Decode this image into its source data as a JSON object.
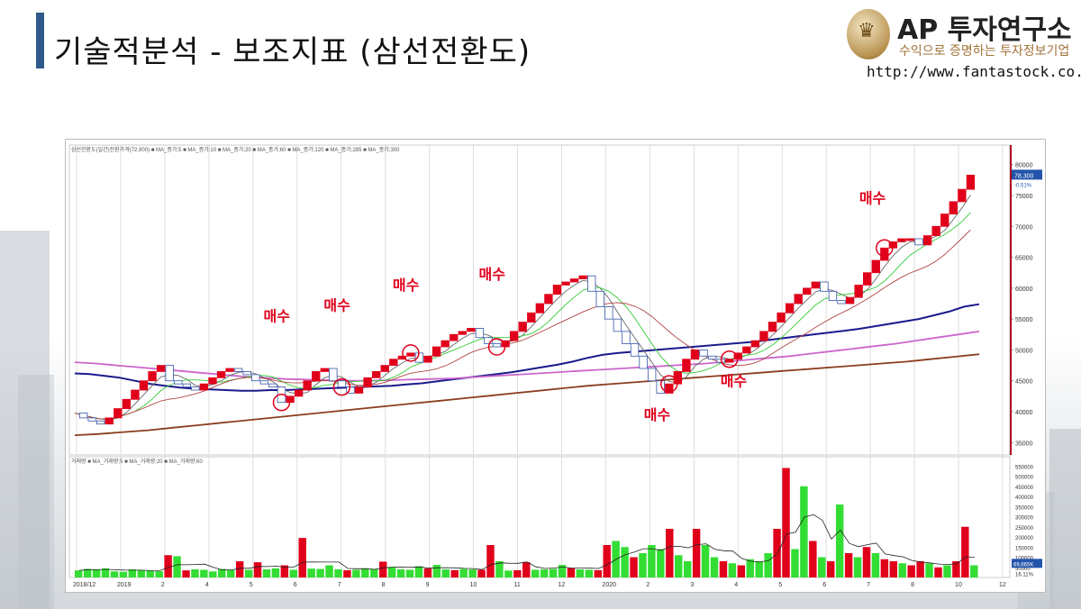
{
  "header": {
    "title": "기술적분석 - 보조지표 (삼선전환도)",
    "logo_name": "AP 투자연구소",
    "logo_sub": "수익으로 증명하는 투자정보기업",
    "logo_url": "http://www.fantastock.co.kr"
  },
  "chart_data": {
    "type": "line",
    "price_panel": {
      "legend": [
        "삼선전환도(일간)전환가격(72,900)",
        "MA_종가;5",
        "MA_종가;10",
        "MA_종가;20",
        "MA_종가;60",
        "MA_종가;120",
        "MA_종가;285",
        "MA_종가;300"
      ],
      "ylim": [
        33000,
        82000
      ],
      "y_ticks": [
        35000,
        40000,
        45000,
        50000,
        55000,
        60000,
        65000,
        70000,
        75000,
        80000
      ],
      "last_price_label": "78,300",
      "change_label": "-0.51%",
      "x_ticks": [
        "2018/12",
        "2019",
        "2",
        "4",
        "5",
        "6",
        "7",
        "8",
        "9",
        "10",
        "11",
        "12",
        "2020",
        "2",
        "3",
        "4",
        "5",
        "6",
        "7",
        "8",
        "10",
        "12"
      ],
      "series": [
        {
          "name": "전환가격",
          "color": "#e0001b",
          "values": [
            39800,
            39000,
            38500,
            38000,
            39000,
            40500,
            42000,
            43500,
            45000,
            46500,
            47500,
            45000,
            44500,
            44000,
            43500,
            44500,
            45500,
            46500,
            47000,
            46500,
            46000,
            45000,
            44500,
            44000,
            41500,
            42500,
            43500,
            45000,
            46500,
            47000,
            45000,
            44000,
            43000,
            44000,
            45500,
            46500,
            47500,
            48500,
            49000,
            49500,
            48000,
            49000,
            50500,
            51500,
            52500,
            53000,
            53500,
            52000,
            51000,
            50500,
            51500,
            53000,
            54500,
            56000,
            57500,
            59000,
            60500,
            61000,
            61500,
            62000,
            59500,
            57000,
            55000,
            53000,
            51000,
            49000,
            47000,
            45000,
            43000,
            44500,
            46500,
            48500,
            50000,
            49000,
            48500,
            48000,
            48500,
            49500,
            50500,
            51500,
            53000,
            54500,
            56000,
            57500,
            59000,
            60000,
            61000,
            59500,
            58000,
            57500,
            58500,
            60500,
            62500,
            64500,
            66500,
            67500,
            68000,
            68000,
            67000,
            68500,
            70000,
            72000,
            74000,
            76000,
            78300
          ]
        },
        {
          "name": "MA_종가;120",
          "color": "#1a1a8c",
          "values": [
            46200,
            46100,
            45800,
            45500,
            45000,
            44500,
            44200,
            43900,
            43700,
            43600,
            43500,
            43400,
            43400,
            43500,
            43500,
            43600,
            43700,
            43800,
            43900,
            44000,
            44100,
            44200,
            44400,
            44600,
            44900,
            45200,
            45500,
            45800,
            46100,
            46400,
            46800,
            47200,
            47600,
            48100,
            48700,
            49200,
            49500,
            49700,
            49900,
            50100,
            50300,
            50500,
            50700,
            50900,
            51100,
            51300,
            51600,
            51900,
            52200,
            52500,
            52800,
            53100,
            53400,
            53800,
            54200,
            54600,
            55000,
            55600,
            56200,
            57000,
            57400
          ]
        },
        {
          "name": "MA_종가;285",
          "color": "#8a3d1e",
          "values": [
            36200,
            36400,
            36700,
            37000,
            37400,
            37800,
            38200,
            38600,
            39000,
            39400,
            39800,
            40200,
            40600,
            41000,
            41400,
            41800,
            42200,
            42600,
            43000,
            43400,
            43800,
            44200,
            44500,
            44800,
            45100,
            45400,
            45700,
            46000,
            46300,
            46600,
            46900,
            47200,
            47500,
            47800,
            48100,
            48500,
            48900,
            49300
          ]
        },
        {
          "name": "MA_종가;300",
          "color": "#cc66cc",
          "values": [
            48000,
            47800,
            47500,
            47200,
            46900,
            46600,
            46300,
            46000,
            45700,
            45500,
            45300,
            45200,
            45100,
            45000,
            45000,
            45100,
            45200,
            45300,
            45400,
            45600,
            45800,
            46000,
            46200,
            46400,
            46600,
            46800,
            47000,
            47200,
            47400,
            47600,
            47800,
            48100,
            48400,
            48700,
            49000,
            49400,
            49800,
            50200,
            50600,
            51000,
            51500,
            52000,
            52500,
            53000
          ]
        }
      ],
      "buy_markers": [
        {
          "label": "매수",
          "index": 24
        },
        {
          "label": "매수",
          "index": 31
        },
        {
          "label": "매수",
          "index": 39
        },
        {
          "label": "매수",
          "index": 49
        },
        {
          "label": "매수",
          "index": 69
        },
        {
          "label": "매수",
          "index": 76
        },
        {
          "label": "매수",
          "index": 94
        }
      ]
    },
    "volume_panel": {
      "legend": [
        "거래량",
        "MA_거래량;5",
        "MA_거래량;20",
        "MA_거래량;60"
      ],
      "ylim": [
        0,
        560000
      ],
      "y_ticks": [
        50000,
        100000,
        150000,
        200000,
        250000,
        300000,
        350000,
        400000,
        450000,
        500000,
        550000
      ],
      "last_volume_label": "69,665K",
      "change_label": "16.11%",
      "values": [
        35000,
        42000,
        38000,
        45000,
        30000,
        28000,
        40000,
        36000,
        33000,
        31000,
        110000,
        105000,
        35000,
        40000,
        38000,
        30000,
        42000,
        36000,
        80000,
        38000,
        75000,
        40000,
        45000,
        60000,
        38000,
        195000,
        44000,
        42000,
        60000,
        40000,
        36000,
        38000,
        44000,
        42000,
        78000,
        52000,
        40000,
        38000,
        55000,
        44000,
        62000,
        40000,
        36000,
        42000,
        40000,
        38000,
        160000,
        80000,
        34000,
        36000,
        75000,
        38000,
        40000,
        42000,
        62000,
        46000,
        40000,
        38000,
        36000,
        160000,
        180000,
        150000,
        100000,
        120000,
        160000,
        140000,
        240000,
        110000,
        80000,
        240000,
        160000,
        100000,
        80000,
        70000,
        60000,
        90000,
        80000,
        120000,
        240000,
        540000,
        140000,
        450000,
        180000,
        100000,
        80000,
        360000,
        120000,
        100000,
        150000,
        120000,
        90000,
        80000,
        70000,
        60000,
        80000,
        70000,
        50000,
        60000,
        80000,
        250000,
        60000
      ],
      "up_flags": [
        1,
        1,
        1,
        1,
        1,
        1,
        1,
        1,
        1,
        1,
        0,
        1,
        0,
        1,
        1,
        1,
        1,
        1,
        0,
        1,
        0,
        1,
        1,
        0,
        1,
        0,
        1,
        1,
        1,
        1,
        0,
        1,
        1,
        1,
        0,
        1,
        1,
        1,
        1,
        0,
        1,
        1,
        0,
        1,
        1,
        0,
        0,
        1,
        1,
        0,
        0,
        1,
        1,
        1,
        1,
        0,
        1,
        1,
        0,
        0,
        1,
        1,
        0,
        1,
        1,
        1,
        0,
        1,
        1,
        0,
        1,
        1,
        0,
        1,
        0,
        1,
        1,
        1,
        0,
        0,
        1,
        1,
        0,
        1,
        0,
        1,
        0,
        1,
        0,
        1,
        0,
        0,
        1,
        0,
        0,
        1,
        0,
        1,
        0,
        0,
        1
      ]
    }
  }
}
